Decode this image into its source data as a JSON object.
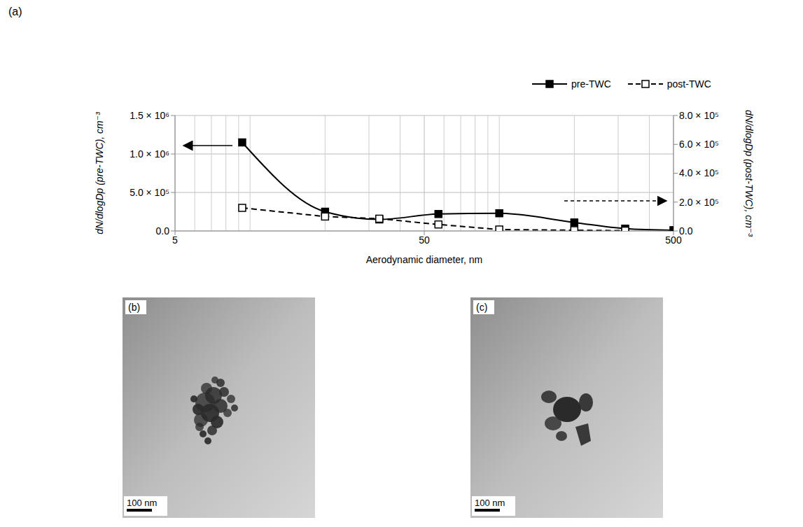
{
  "chart_data": {
    "type": "line",
    "annotations": [
      "(a)"
    ],
    "xlabel": "Aerodynamic diameter, nm",
    "ylabel": "dN/dlogDp (pre-TWC), cm⁻³",
    "y2label": "dN/dlogDp (post-TWC), cm⁻³",
    "x": [
      9.3,
      20,
      33,
      57,
      100,
      200,
      320,
      500
    ],
    "series": [
      {
        "name": "pre-TWC",
        "color": "#000000",
        "values": [
          1150000,
          250000,
          150000,
          220000,
          230000,
          110000,
          30000,
          10000
        ],
        "marker": "filled-square",
        "line_style": "solid"
      },
      {
        "name": "post-TWC",
        "color": "#000000",
        "values": [
          160000,
          100000,
          85000,
          45000,
          10000,
          5000,
          2000,
          null
        ],
        "marker": "open-square",
        "line_style": "dashed",
        "axis": "y2"
      }
    ],
    "log": "x",
    "xlim": [
      5,
      500
    ],
    "xticks": [
      5,
      50,
      500
    ],
    "ylim": [
      0,
      1500000
    ],
    "yticks": [
      {
        "value": 0,
        "label": "0.0"
      },
      {
        "value": 500000,
        "label": "5.0 × 10⁵"
      },
      {
        "value": 1000000,
        "label": "1.0 × 10⁶"
      },
      {
        "value": 1500000,
        "label": "1.5 × 10⁶"
      }
    ],
    "y2lim": [
      0,
      800000
    ],
    "y2ticks": [
      {
        "value": 0,
        "label": "0.0"
      },
      {
        "value": 200000,
        "label": "2.0 × 10⁵"
      },
      {
        "value": 400000,
        "label": "4.0 × 10⁵"
      },
      {
        "value": 600000,
        "label": "6.0 × 10⁵"
      },
      {
        "value": 800000,
        "label": "8.0 × 10⁵"
      }
    ],
    "grid": true,
    "legend": "top right"
  },
  "images": [
    {
      "label": "(b)",
      "scale_bar": "100 nm"
    },
    {
      "label": "(c)",
      "scale_bar": "100 nm"
    }
  ]
}
